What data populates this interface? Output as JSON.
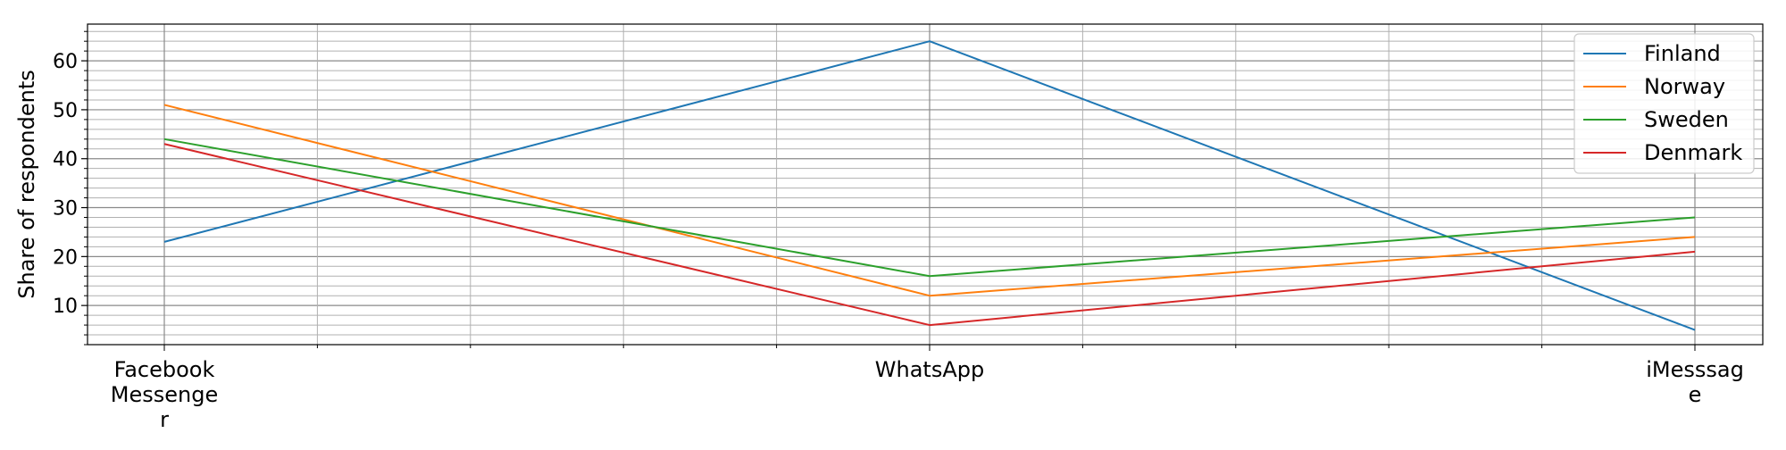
{
  "chart_data": {
    "type": "line",
    "title": "",
    "xlabel": "",
    "ylabel": "Share of respondents",
    "categories": [
      "Facebook\nMessenger",
      "WhatsApp",
      "iMesssage"
    ],
    "category_lines": [
      [
        "Facebook",
        "Messenge",
        "r"
      ],
      [
        "WhatsApp"
      ],
      [
        "iMesssag",
        "e"
      ]
    ],
    "yticks": [
      10,
      20,
      30,
      40,
      50,
      60
    ],
    "ylim": [
      2,
      67.5
    ],
    "grid": true,
    "legend_position": "top-right",
    "series": [
      {
        "name": "Finland",
        "color": "#1f77b4",
        "values": [
          23,
          64,
          5
        ]
      },
      {
        "name": "Norway",
        "color": "#ff7f0e",
        "values": [
          51,
          12,
          24
        ]
      },
      {
        "name": "Sweden",
        "color": "#2ca02c",
        "values": [
          44,
          16,
          28
        ]
      },
      {
        "name": "Denmark",
        "color": "#d62728",
        "values": [
          43,
          6,
          21
        ]
      }
    ]
  }
}
